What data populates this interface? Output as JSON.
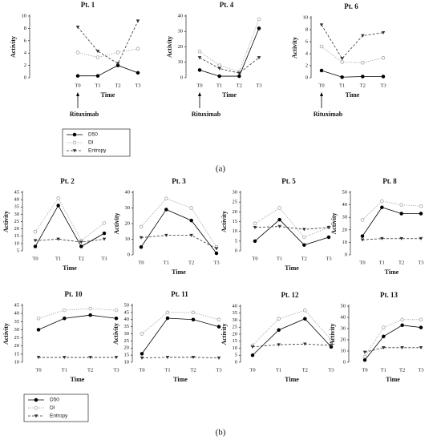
{
  "panel_labels": [
    "(a)",
    "(b)"
  ],
  "chart_data": [
    {
      "type": "line",
      "title": "Pt. 1",
      "xlabel": "Time",
      "ylabel": "Activity",
      "annotation": "Rituximab",
      "categories": [
        "T0",
        "T1",
        "T2",
        "T3"
      ],
      "ylim": [
        0,
        10
      ],
      "yticks": [
        0,
        2,
        4,
        6,
        8,
        10
      ],
      "series": [
        {
          "name": "D50",
          "color": "#000000",
          "marker": "circle-filled",
          "dash": "solid",
          "values": [
            0.3,
            0.3,
            2,
            0.8
          ]
        },
        {
          "name": "DI",
          "color": "#9a9a9a",
          "marker": "circle-open",
          "dash": "dotted",
          "values": [
            4.1,
            3.3,
            4.1,
            4.7
          ]
        },
        {
          "name": "Entropy",
          "color": "#333333",
          "marker": "triangle-down",
          "dash": "dashed",
          "values": [
            8.2,
            4.3,
            2.3,
            9.2
          ]
        }
      ]
    },
    {
      "type": "line",
      "title": "Pt. 4",
      "xlabel": "Time",
      "ylabel": "Activity",
      "annotation": "Rituximab",
      "categories": [
        "T0",
        "T1",
        "T2",
        "T3"
      ],
      "ylim": [
        0,
        40
      ],
      "yticks": [
        0,
        10,
        20,
        30,
        40
      ],
      "series": [
        {
          "name": "D50",
          "color": "#000000",
          "marker": "circle-filled",
          "dash": "solid",
          "values": [
            5,
            1,
            1,
            32
          ]
        },
        {
          "name": "DI",
          "color": "#9a9a9a",
          "marker": "circle-open",
          "dash": "dotted",
          "values": [
            17,
            8,
            4,
            38
          ]
        },
        {
          "name": "Entropy",
          "color": "#333333",
          "marker": "triangle-down",
          "dash": "dashed",
          "values": [
            13,
            6,
            3,
            13
          ]
        }
      ]
    },
    {
      "type": "line",
      "title": "Pt. 6",
      "xlabel": "Time",
      "ylabel": "Activity",
      "annotation": "Rituximab",
      "categories": [
        "T0",
        "T1",
        "T2",
        "T3"
      ],
      "ylim": [
        0,
        10
      ],
      "yticks": [
        0,
        2,
        4,
        6,
        8,
        10
      ],
      "series": [
        {
          "name": "D50",
          "color": "#000000",
          "marker": "circle-filled",
          "dash": "solid",
          "values": [
            1.2,
            0.1,
            0.2,
            0.2
          ]
        },
        {
          "name": "DI",
          "color": "#9a9a9a",
          "marker": "circle-open",
          "dash": "dotted",
          "values": [
            5.2,
            2.6,
            2.5,
            3.3
          ]
        },
        {
          "name": "Entropy",
          "color": "#333333",
          "marker": "triangle-down",
          "dash": "dashed",
          "values": [
            8.8,
            3.2,
            7,
            7.5
          ]
        }
      ]
    },
    {
      "type": "line",
      "title": "Pt. 2",
      "xlabel": "Time",
      "ylabel": "Activity",
      "categories": [
        "T0",
        "T1",
        "T2",
        "T3"
      ],
      "ylim": [
        5,
        45
      ],
      "yticks": [
        5,
        10,
        15,
        20,
        25,
        30,
        35,
        40,
        45
      ],
      "series": [
        {
          "name": "D50",
          "color": "#000000",
          "marker": "circle-filled",
          "dash": "solid",
          "values": [
            8,
            36,
            8,
            17
          ]
        },
        {
          "name": "DI",
          "color": "#9a9a9a",
          "marker": "circle-open",
          "dash": "dotted",
          "values": [
            18,
            41,
            12,
            24
          ]
        },
        {
          "name": "Entropy",
          "color": "#333333",
          "marker": "triangle-down",
          "dash": "dashed",
          "values": [
            12,
            13,
            11,
            13
          ]
        }
      ]
    },
    {
      "type": "line",
      "title": "Pt. 3",
      "xlabel": "Time",
      "ylabel": "Activity",
      "categories": [
        "T0",
        "T1",
        "T2",
        "T3"
      ],
      "ylim": [
        0,
        40
      ],
      "yticks": [
        0,
        10,
        20,
        30,
        40
      ],
      "series": [
        {
          "name": "D50",
          "color": "#000000",
          "marker": "circle-filled",
          "dash": "solid",
          "values": [
            5,
            29,
            22,
            1
          ]
        },
        {
          "name": "DI",
          "color": "#9a9a9a",
          "marker": "circle-open",
          "dash": "dotted",
          "values": [
            18,
            36,
            30,
            5
          ]
        },
        {
          "name": "Entropy",
          "color": "#333333",
          "marker": "triangle-down",
          "dash": "dashed",
          "values": [
            11,
            12.5,
            12.5,
            4
          ]
        }
      ]
    },
    {
      "type": "line",
      "title": "Pt. 5",
      "xlabel": "Time",
      "ylabel": "Activity",
      "categories": [
        "T0",
        "T1",
        "T2",
        "T3"
      ],
      "ylim": [
        0,
        30
      ],
      "yticks": [
        0,
        5,
        10,
        15,
        20,
        25,
        30
      ],
      "series": [
        {
          "name": "D50",
          "color": "#000000",
          "marker": "circle-filled",
          "dash": "solid",
          "values": [
            5,
            16,
            3,
            7
          ]
        },
        {
          "name": "DI",
          "color": "#9a9a9a",
          "marker": "circle-open",
          "dash": "dotted",
          "values": [
            14,
            22,
            7,
            12
          ]
        },
        {
          "name": "Entropy",
          "color": "#333333",
          "marker": "triangle-down",
          "dash": "dashed",
          "values": [
            12,
            12.5,
            11,
            12
          ]
        }
      ]
    },
    {
      "type": "line",
      "title": "Pt. 8",
      "xlabel": "Time",
      "ylabel": "Activity",
      "categories": [
        "T0",
        "T1",
        "T2",
        "T3"
      ],
      "ylim": [
        0,
        50
      ],
      "yticks": [
        0,
        10,
        20,
        30,
        40,
        50
      ],
      "series": [
        {
          "name": "D50",
          "color": "#000000",
          "marker": "circle-filled",
          "dash": "solid",
          "values": [
            15,
            38,
            33,
            33
          ]
        },
        {
          "name": "DI",
          "color": "#9a9a9a",
          "marker": "circle-open",
          "dash": "dotted",
          "values": [
            28,
            43,
            40,
            39
          ]
        },
        {
          "name": "Entropy",
          "color": "#333333",
          "marker": "triangle-down",
          "dash": "dashed",
          "values": [
            12,
            13,
            13,
            13
          ]
        }
      ]
    },
    {
      "type": "line",
      "title": "Pt. 10",
      "xlabel": "Time",
      "ylabel": "Activity",
      "categories": [
        "T0",
        "T1",
        "T2",
        "T3"
      ],
      "ylim": [
        10,
        45
      ],
      "yticks": [
        10,
        15,
        20,
        25,
        30,
        35,
        40,
        45
      ],
      "series": [
        {
          "name": "D50",
          "color": "#000000",
          "marker": "circle-filled",
          "dash": "solid",
          "values": [
            30,
            37,
            39,
            37
          ]
        },
        {
          "name": "DI",
          "color": "#9a9a9a",
          "marker": "circle-open",
          "dash": "dotted",
          "values": [
            37,
            42,
            43,
            42
          ]
        },
        {
          "name": "Entropy",
          "color": "#333333",
          "marker": "triangle-down",
          "dash": "dashed",
          "values": [
            13,
            13,
            13,
            13
          ]
        }
      ]
    },
    {
      "type": "line",
      "title": "Pt. 11",
      "xlabel": "Time",
      "ylabel": "Activity",
      "categories": [
        "T0",
        "T1",
        "T2",
        "T3"
      ],
      "ylim": [
        10,
        50
      ],
      "yticks": [
        10,
        15,
        20,
        25,
        30,
        35,
        40,
        45,
        50
      ],
      "series": [
        {
          "name": "D50",
          "color": "#000000",
          "marker": "circle-filled",
          "dash": "solid",
          "values": [
            16,
            41,
            40,
            35
          ]
        },
        {
          "name": "DI",
          "color": "#9a9a9a",
          "marker": "circle-open",
          "dash": "dotted",
          "values": [
            30,
            45,
            45,
            40
          ]
        },
        {
          "name": "Entropy",
          "color": "#333333",
          "marker": "triangle-down",
          "dash": "dashed",
          "values": [
            13,
            13.5,
            13.5,
            13
          ]
        }
      ]
    },
    {
      "type": "line",
      "title": "Pt. 12",
      "xlabel": "Time",
      "ylabel": "Activity",
      "categories": [
        "T0",
        "T1",
        "T2",
        "T3"
      ],
      "ylim": [
        0,
        40
      ],
      "yticks": [
        0,
        5,
        10,
        15,
        20,
        25,
        30,
        35,
        40
      ],
      "series": [
        {
          "name": "D50",
          "color": "#000000",
          "marker": "circle-filled",
          "dash": "solid",
          "values": [
            5,
            23,
            31,
            11
          ]
        },
        {
          "name": "DI",
          "color": "#9a9a9a",
          "marker": "circle-open",
          "dash": "dotted",
          "values": [
            12,
            31,
            37,
            16
          ]
        },
        {
          "name": "Entropy",
          "color": "#333333",
          "marker": "triangle-down",
          "dash": "dashed",
          "values": [
            11,
            12.5,
            13,
            12
          ]
        }
      ]
    },
    {
      "type": "line",
      "title": "Pt. 13",
      "xlabel": "Time",
      "ylabel": "Activity",
      "categories": [
        "T0",
        "T1",
        "T2",
        "T3"
      ],
      "ylim": [
        0,
        50
      ],
      "yticks": [
        0,
        10,
        20,
        30,
        40,
        50
      ],
      "series": [
        {
          "name": "D50",
          "color": "#000000",
          "marker": "circle-filled",
          "dash": "solid",
          "values": [
            2,
            23,
            33,
            31
          ]
        },
        {
          "name": "DI",
          "color": "#9a9a9a",
          "marker": "circle-open",
          "dash": "dotted",
          "values": [
            5,
            31,
            38,
            38
          ]
        },
        {
          "name": "Entropy",
          "color": "#333333",
          "marker": "triangle-down",
          "dash": "dashed",
          "values": [
            9,
            13,
            13,
            13
          ]
        }
      ]
    }
  ]
}
